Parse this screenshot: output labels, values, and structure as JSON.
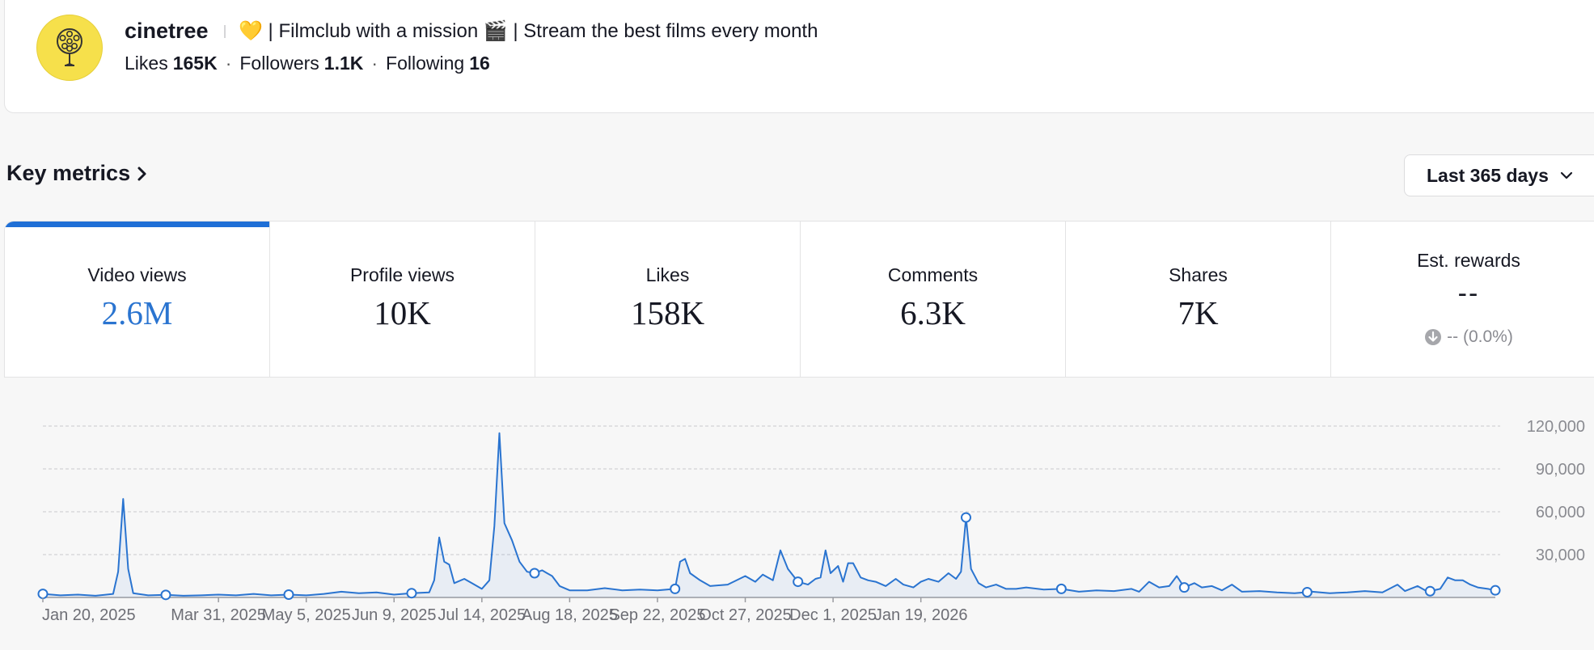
{
  "profile": {
    "username": "cinetree",
    "bio": "💛 | Filmclub with a mission 🎬 | Stream the best films every month",
    "stats": {
      "likes_label": "Likes",
      "likes_value": "165K",
      "followers_label": "Followers",
      "followers_value": "1.1K",
      "following_label": "Following",
      "following_value": "16",
      "separator": "·"
    }
  },
  "key_metrics": {
    "title": "Key metrics",
    "range": "Last 365 days"
  },
  "metrics": [
    {
      "label": "Video views",
      "value": "2.6M"
    },
    {
      "label": "Profile views",
      "value": "10K"
    },
    {
      "label": "Likes",
      "value": "158K"
    },
    {
      "label": "Comments",
      "value": "6.3K"
    },
    {
      "label": "Shares",
      "value": "7K"
    },
    {
      "label": "Est. rewards",
      "value": "--",
      "change": "-- (0.0%)"
    }
  ],
  "colors": {
    "accent": "#1f6fd6",
    "line": "#2a74d0",
    "grid": "#c8c8cc"
  },
  "chart_data": {
    "type": "line",
    "x_start": "2025-01-20",
    "x_end": "2026-01-25",
    "x_tick_labels": [
      "Jan 20, 2025",
      "Mar 31, 2025",
      "May 5, 2025",
      "Jun 9, 2025",
      "Jul 14, 2025",
      "Aug 18, 2025",
      "Sep 22, 2025",
      "Oct 27, 2025",
      "Dec 1, 2025",
      "Jan 19, 2026"
    ],
    "y_ticks": [
      30000,
      60000,
      90000,
      120000
    ],
    "y_tick_labels": [
      "30,000",
      "60,000",
      "90,000",
      "120,000"
    ],
    "ylim": [
      0,
      120000
    ],
    "grid": true,
    "series": [
      {
        "values": [
          [
            0,
            2500
          ],
          [
            7,
            1500
          ],
          [
            14,
            2000
          ],
          [
            21,
            1200
          ],
          [
            28,
            2500
          ],
          [
            30,
            18000
          ],
          [
            32,
            69000
          ],
          [
            34,
            20000
          ],
          [
            36,
            3000
          ],
          [
            42,
            1500
          ],
          [
            49,
            1800
          ],
          [
            56,
            1200
          ],
          [
            63,
            1500
          ],
          [
            70,
            2000
          ],
          [
            77,
            1500
          ],
          [
            84,
            2500
          ],
          [
            91,
            1500
          ],
          [
            98,
            2000
          ],
          [
            105,
            1500
          ],
          [
            112,
            2500
          ],
          [
            119,
            4000
          ],
          [
            126,
            3000
          ],
          [
            133,
            3500
          ],
          [
            140,
            2000
          ],
          [
            147,
            3000
          ],
          [
            154,
            3500
          ],
          [
            156,
            12000
          ],
          [
            158,
            42000
          ],
          [
            160,
            25000
          ],
          [
            162,
            23000
          ],
          [
            164,
            10000
          ],
          [
            168,
            13000
          ],
          [
            171,
            10000
          ],
          [
            175,
            6000
          ],
          [
            178,
            12000
          ],
          [
            180,
            50000
          ],
          [
            182,
            115000
          ],
          [
            184,
            52000
          ],
          [
            187,
            40000
          ],
          [
            190,
            25000
          ],
          [
            193,
            18000
          ],
          [
            196,
            17000
          ],
          [
            199,
            19000
          ],
          [
            201,
            17000
          ],
          [
            203,
            15000
          ],
          [
            206,
            8000
          ],
          [
            210,
            5000
          ],
          [
            217,
            5000
          ],
          [
            224,
            6500
          ],
          [
            231,
            5000
          ],
          [
            238,
            5500
          ],
          [
            245,
            5000
          ],
          [
            252,
            6000
          ],
          [
            254,
            25000
          ],
          [
            256,
            27000
          ],
          [
            258,
            17000
          ],
          [
            262,
            12000
          ],
          [
            266,
            8000
          ],
          [
            273,
            9000
          ],
          [
            280,
            15000
          ],
          [
            284,
            11000
          ],
          [
            287,
            16000
          ],
          [
            291,
            12000
          ],
          [
            294,
            33000
          ],
          [
            297,
            20000
          ],
          [
            301,
            11000
          ],
          [
            305,
            9000
          ],
          [
            308,
            13000
          ],
          [
            310,
            14000
          ],
          [
            312,
            33000
          ],
          [
            314,
            17000
          ],
          [
            317,
            22000
          ],
          [
            319,
            11000
          ],
          [
            321,
            24000
          ],
          [
            323,
            24000
          ],
          [
            326,
            14000
          ],
          [
            329,
            12000
          ],
          [
            332,
            11000
          ],
          [
            336,
            8000
          ],
          [
            340,
            13000
          ],
          [
            343,
            9000
          ],
          [
            347,
            7000
          ],
          [
            350,
            11000
          ],
          [
            353,
            13000
          ],
          [
            357,
            11000
          ],
          [
            361,
            17000
          ],
          [
            364,
            13000
          ],
          [
            366,
            18000
          ],
          [
            368,
            56000
          ],
          [
            370,
            20000
          ],
          [
            373,
            10000
          ],
          [
            376,
            7000
          ],
          [
            380,
            9000
          ],
          [
            384,
            6000
          ],
          [
            388,
            6000
          ],
          [
            392,
            7000
          ],
          [
            399,
            5500
          ],
          [
            406,
            6000
          ],
          [
            413,
            4000
          ],
          [
            420,
            5000
          ],
          [
            427,
            4500
          ],
          [
            434,
            6000
          ],
          [
            437,
            4000
          ],
          [
            441,
            11000
          ],
          [
            445,
            7000
          ],
          [
            449,
            8000
          ],
          [
            452,
            15000
          ],
          [
            455,
            7000
          ],
          [
            459,
            10000
          ],
          [
            462,
            7000
          ],
          [
            466,
            8000
          ],
          [
            470,
            5000
          ],
          [
            474,
            9000
          ],
          [
            478,
            4000
          ],
          [
            485,
            4500
          ],
          [
            492,
            3500
          ],
          [
            499,
            3000
          ],
          [
            506,
            4000
          ],
          [
            513,
            3000
          ],
          [
            520,
            3500
          ],
          [
            527,
            4500
          ],
          [
            534,
            3500
          ],
          [
            540,
            9000
          ],
          [
            543,
            4500
          ],
          [
            548,
            8000
          ],
          [
            552,
            4000
          ],
          [
            557,
            6000
          ],
          [
            560,
            14000
          ],
          [
            563,
            12000
          ],
          [
            566,
            12000
          ],
          [
            569,
            9000
          ],
          [
            572,
            7000
          ],
          [
            576,
            6000
          ],
          [
            579,
            5000
          ]
        ]
      }
    ],
    "markers_on_x": [
      0,
      49,
      98,
      147,
      196,
      252,
      301,
      368,
      406,
      455,
      504,
      553,
      579
    ]
  }
}
